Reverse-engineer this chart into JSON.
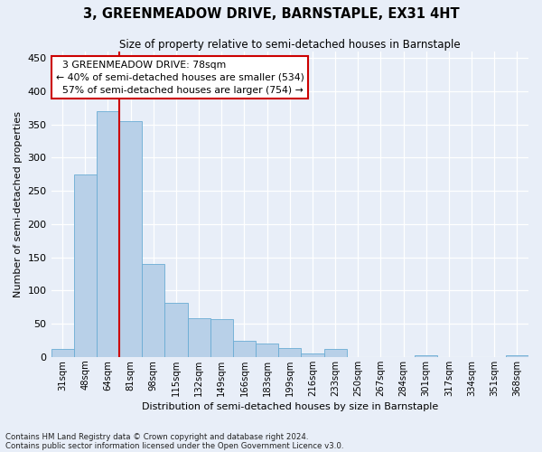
{
  "title": "3, GREENMEADOW DRIVE, BARNSTAPLE, EX31 4HT",
  "subtitle": "Size of property relative to semi-detached houses in Barnstaple",
  "xlabel": "Distribution of semi-detached houses by size in Barnstaple",
  "ylabel": "Number of semi-detached properties",
  "footnote1": "Contains HM Land Registry data © Crown copyright and database right 2024.",
  "footnote2": "Contains public sector information licensed under the Open Government Licence v3.0.",
  "bin_labels": [
    "31sqm",
    "48sqm",
    "64sqm",
    "81sqm",
    "98sqm",
    "115sqm",
    "132sqm",
    "149sqm",
    "166sqm",
    "183sqm",
    "199sqm",
    "216sqm",
    "233sqm",
    "250sqm",
    "267sqm",
    "284sqm",
    "301sqm",
    "317sqm",
    "334sqm",
    "351sqm",
    "368sqm"
  ],
  "bar_values": [
    12,
    275,
    370,
    355,
    140,
    82,
    58,
    57,
    25,
    20,
    14,
    5,
    12,
    0,
    0,
    0,
    3,
    0,
    0,
    0,
    3
  ],
  "bar_color": "#b8d0e8",
  "bar_edge_color": "#6aacd4",
  "property_label": "3 GREENMEADOW DRIVE: 78sqm",
  "pct_smaller": "40% of semi-detached houses are smaller (534)",
  "pct_larger": "57% of semi-detached houses are larger (754)",
  "annotation_box_color": "#ffffff",
  "annotation_box_edge": "#cc0000",
  "vline_color": "#cc0000",
  "vline_bin": 3,
  "ylim": [
    0,
    460
  ],
  "yticks": [
    0,
    50,
    100,
    150,
    200,
    250,
    300,
    350,
    400,
    450
  ],
  "bg_color": "#e8eef8",
  "plot_bg_color": "#e8eef8",
  "bar_width": 1.0
}
